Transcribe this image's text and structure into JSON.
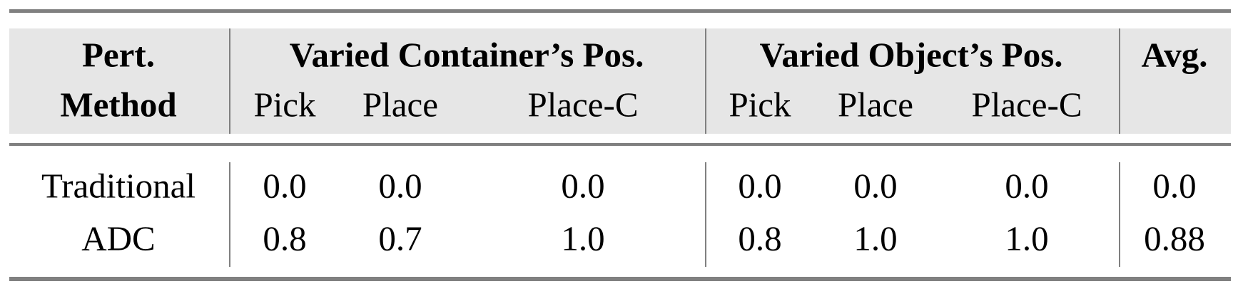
{
  "table": {
    "header_row1": {
      "method": "Pert.",
      "group1": "Varied Container’s Pos.",
      "group2": "Varied Object’s Pos.",
      "avg": "Avg."
    },
    "header_row2": {
      "method": "Method",
      "subcols": [
        "Pick",
        "Place",
        "Place-C",
        "Pick",
        "Place",
        "Place-C"
      ]
    },
    "rows": [
      {
        "method": "Traditional",
        "values": [
          "0.0",
          "0.0",
          "0.0",
          "0.0",
          "0.0",
          "0.0",
          "0.0"
        ]
      },
      {
        "method": "ADC",
        "values": [
          "0.8",
          "0.7",
          "1.0",
          "0.8",
          "1.0",
          "1.0",
          "0.88"
        ]
      }
    ],
    "colors": {
      "header_bg": "#e6e6e6",
      "rules": "#808080"
    }
  }
}
